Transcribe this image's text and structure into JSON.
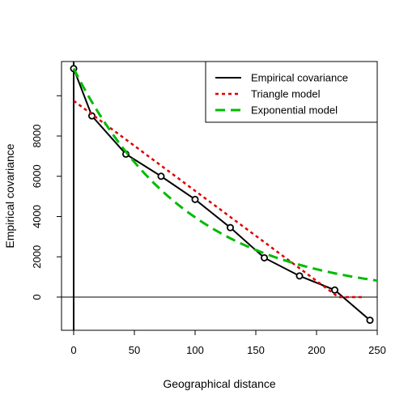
{
  "chart_data": {
    "type": "line",
    "title": "",
    "xlabel": "Geographical distance",
    "ylabel": "Empirical covariance",
    "xlim": [
      -10,
      250
    ],
    "ylim": [
      -1650,
      11700
    ],
    "x_ticks": [
      0,
      50,
      100,
      150,
      200,
      250
    ],
    "x_tick_labels": [
      "0",
      "50",
      "100",
      "150",
      "200",
      "250"
    ],
    "y_ticks": [
      0,
      2000,
      4000,
      6000,
      8000,
      10000
    ],
    "y_tick_labels": [
      "0",
      "2000",
      "4000",
      "6000",
      "8000",
      ""
    ],
    "grid": false,
    "reference_lines": {
      "horizontal_y": 0,
      "vertical_x": 0
    },
    "legend_position": "top-right",
    "series": [
      {
        "name": "Empirical covariance",
        "color": "#000000",
        "style": "solid-with-circles",
        "x": [
          0,
          15,
          43,
          72,
          100,
          129,
          157,
          186,
          215,
          244
        ],
        "y": [
          11350,
          9000,
          7100,
          6000,
          4850,
          3450,
          1950,
          1050,
          350,
          -1150
        ]
      },
      {
        "name": "Triangle model",
        "color": "#dd0000",
        "style": "dotted",
        "x": [
          0,
          218,
          240
        ],
        "y": [
          9750,
          0,
          0
        ]
      },
      {
        "name": "Exponential model",
        "color": "#00bb00",
        "style": "dashed",
        "function": {
          "form": "sill * exp(-x / range)",
          "sill": 11350,
          "range": 95,
          "x_from": 0,
          "x_to": 250
        }
      }
    ]
  }
}
